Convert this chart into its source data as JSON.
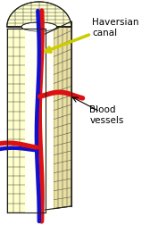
{
  "bg_color": "#ffffff",
  "bone_fill": "#ffffcc",
  "bone_fill_right": "#e8dfa0",
  "bone_stroke": "#222222",
  "grid_color": "#444444",
  "red_vessel": "#dd1111",
  "blue_vessel": "#1111cc",
  "canal_fill": "#fffff0",
  "label_haversian": "Haversian\ncanal",
  "label_blood": "Blood\nvessels",
  "label_color": "#000000",
  "label_fontsize": 7.5,
  "arrow_color": "#cccc00",
  "arrow_lw": 2.5
}
